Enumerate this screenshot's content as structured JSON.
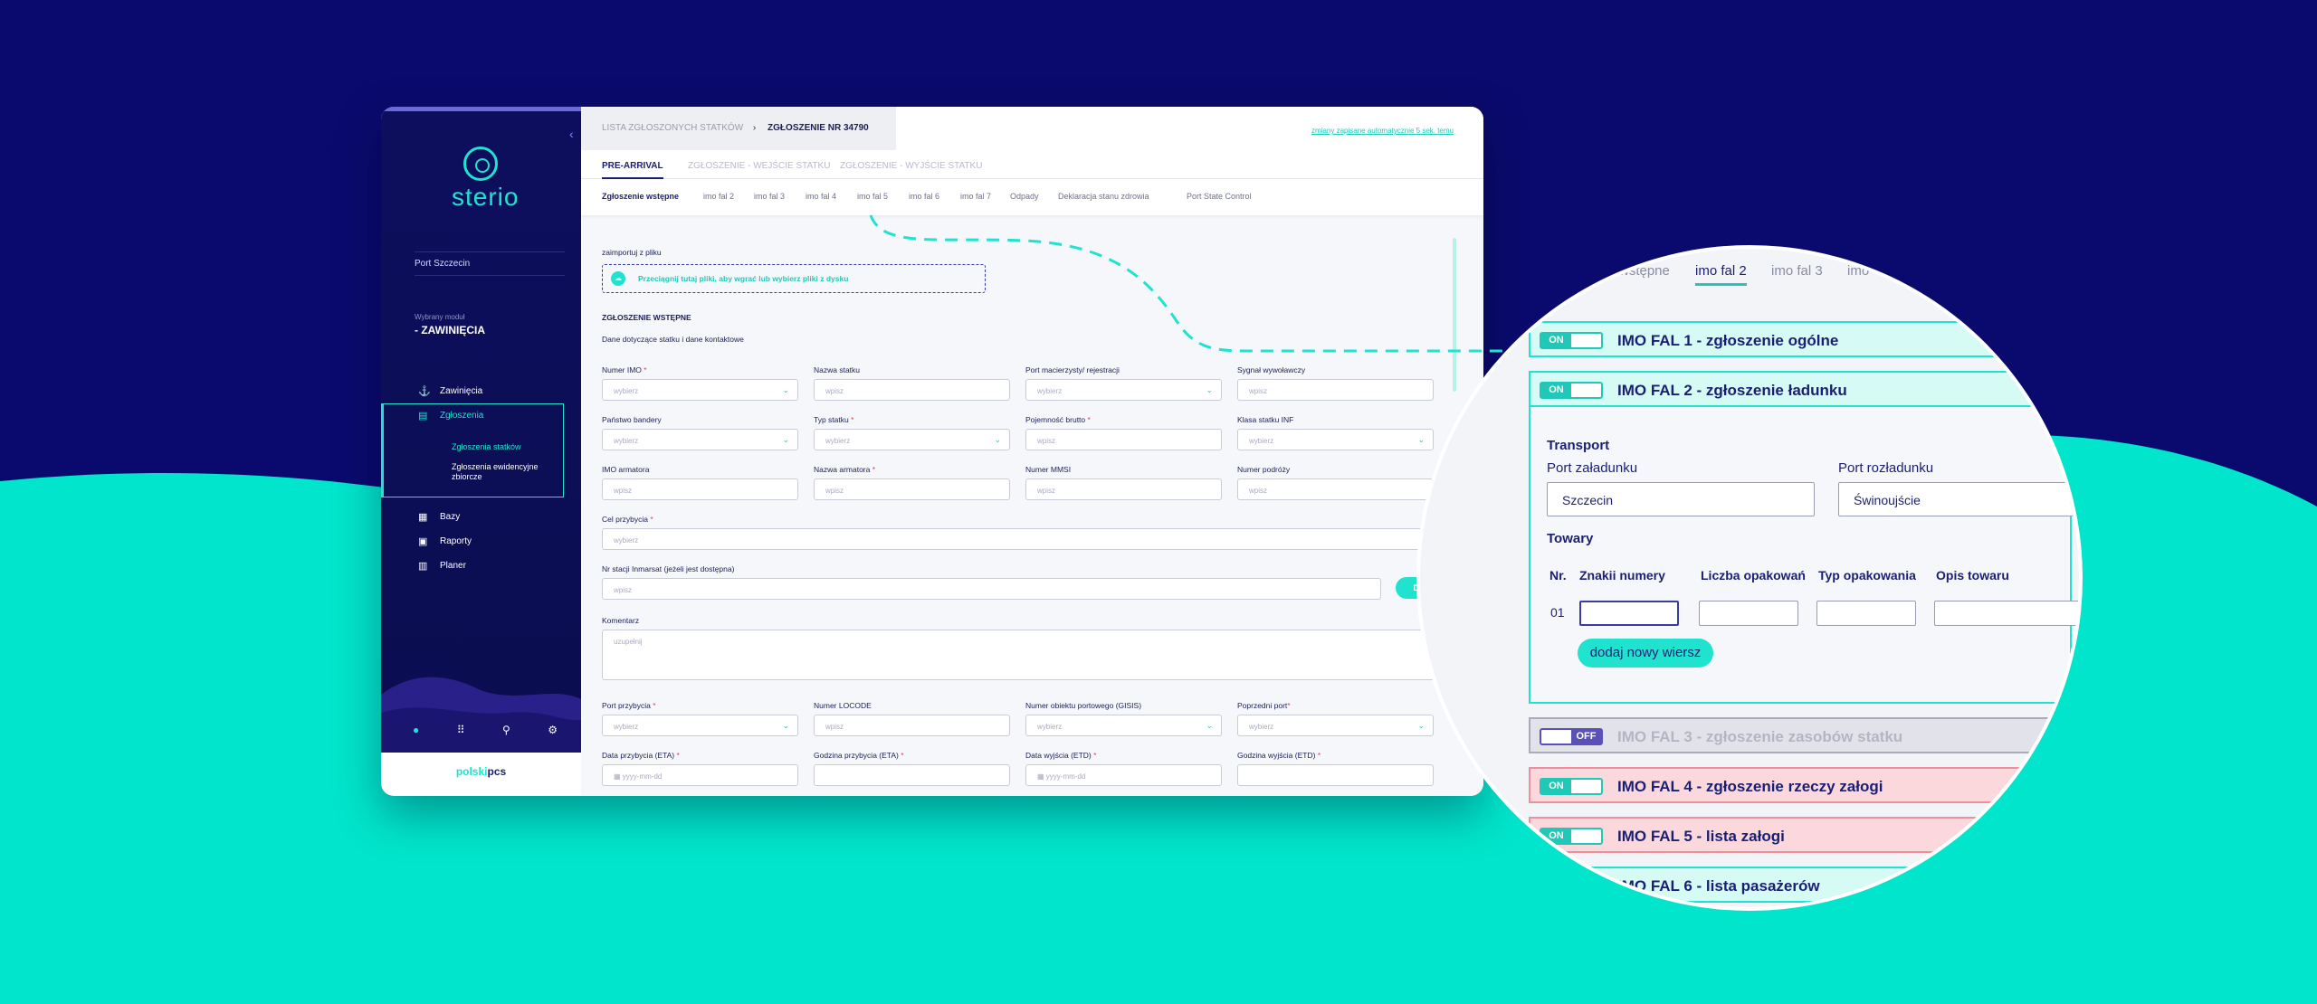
{
  "brand": {
    "name": "sterio",
    "footer_prefix": "polski",
    "footer_suffix": "pcs"
  },
  "sidebar": {
    "port": "Port Szczecin",
    "module_label": "Wybrany moduł",
    "module_value": "- ZAWINIĘCIA",
    "items": [
      {
        "label": "Zawinięcia",
        "icon": "anchor-icon"
      },
      {
        "label": "Zgłoszenia",
        "icon": "document-icon"
      },
      {
        "label": "Bazy",
        "icon": "database-icon"
      },
      {
        "label": "Raporty",
        "icon": "report-icon"
      },
      {
        "label": "Planer",
        "icon": "calendar-icon"
      }
    ],
    "subitems": [
      "Zgłoszenia statków",
      "Zgłoszenia ewidencyjne zbiorcze"
    ]
  },
  "header": {
    "breadcrumb_1": "LISTA ZGŁOSZONYCH STATKÓW",
    "breadcrumb_2": "ZGŁOSZENIE NR 34790",
    "autosave": "zmiany zapisane automatycznie 5 sek. temu"
  },
  "tabs": [
    "PRE-ARRIVAL",
    "ZGŁOSZENIE - WEJŚCIE STATKU",
    "ZGŁOSZENIE - WYJŚCIE STATKU"
  ],
  "subtabs": [
    "Zgłoszenie wstępne",
    "imo fal 2",
    "imo fal 3",
    "imo fal 4",
    "imo fal 5",
    "imo fal 6",
    "imo fal 7",
    "Odpady",
    "Deklaracja stanu zdrowia",
    "Port State Control"
  ],
  "form": {
    "import_label": "zaimportuj z pliku",
    "drop_text": "Przeciągnij tutaj pliki, aby wgrać lub wybierz pliki z dysku",
    "section_title": "ZGŁOSZENIE WSTĘPNE",
    "section_subtitle": "Dane dotyczące statku i dane kontaktowe",
    "labels": {
      "imo": "Numer IMO",
      "ship_name": "Nazwa statku",
      "home_port": "Port macierzysty/ rejestracji",
      "call_sign": "Sygnał wywoławczy",
      "flag": "Państwo bandery",
      "ship_type": "Typ statku",
      "gross": "Pojemność brutto",
      "inf_class": "Klasa statku INF",
      "owner_imo": "IMO armatora",
      "owner_name": "Nazwa armatora",
      "mmsi": "Numer MMSI",
      "voyage": "Numer podróży",
      "purpose": "Cel przybycia",
      "inmarsat": "Nr stacji Inmarsat (jeżeli jest dostępna)",
      "comment": "Komentarz",
      "arrival_port": "Port przybycia",
      "locode": "Numer LOCODE",
      "gisis": "Numer obiektu portowego (GISIS)",
      "prev_port": "Poprzedni port",
      "eta_date": "Data przybycia (ETA)",
      "eta_time": "Godzina przybycia (ETA)",
      "etd_date": "Data wyjścia (ETD)",
      "etd_time": "Godzina wyjścia (ETD)"
    },
    "ph_select": "wybierz",
    "ph_input": "wpisz",
    "ph_comment": "uzupełnij",
    "ph_date": "yyyy-mm-dd",
    "add_button": "Dodaj"
  },
  "zoom": {
    "tabs": [
      "wstępne",
      "imo fal 2",
      "imo fal 3",
      "imo"
    ],
    "fals": [
      {
        "toggle": "ON",
        "title": "IMO FAL 1 - zgłoszenie ogólne"
      },
      {
        "toggle": "ON",
        "title": "IMO FAL 2 - zgłoszenie ładunku"
      },
      {
        "toggle": "OFF",
        "title": "IMO FAL 3 - zgłoszenie zasobów statku"
      },
      {
        "toggle": "ON",
        "title": "IMO FAL 4 - zgłoszenie rzeczy załogi"
      },
      {
        "toggle": "ON",
        "title": "IMO FAL 5 - lista załogi"
      },
      {
        "toggle": "ON",
        "title": "IMO FAL 6 - lista pasażerów"
      }
    ],
    "transport": "Transport",
    "loading_port_label": "Port załadunku",
    "loading_port_value": "Szczecin",
    "unloading_port_label": "Port rozładunku",
    "unloading_port_value": "Świnoujście",
    "goods": "Towary",
    "cols": [
      "Nr.",
      "Znakii numery",
      "Liczba opakowań",
      "Typ opakowania",
      "Opis towaru"
    ],
    "row_nr": "01",
    "add_row": "dodaj nowy wiersz"
  },
  "colors": {
    "navy": "#0a0a6e",
    "teal": "#00e5cc",
    "accent": "#20c9b7",
    "pink": "#fbd8dc"
  }
}
